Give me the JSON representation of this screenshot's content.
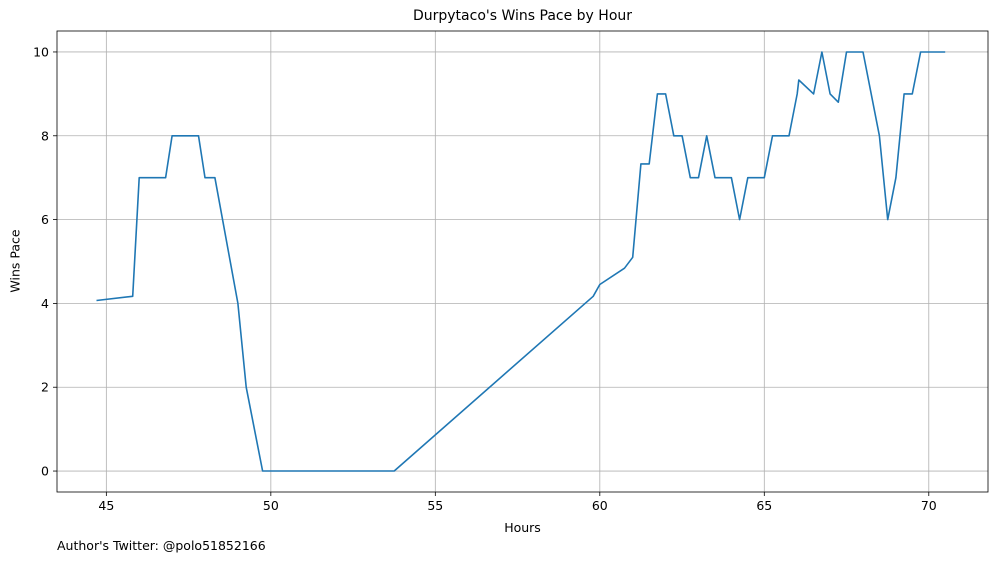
{
  "chart_data": {
    "type": "line",
    "title": "Durpytaco's Wins Pace by Hour",
    "xlabel": "Hours",
    "ylabel": "Wins Pace",
    "xlim": [
      43.5,
      71.8
    ],
    "ylim": [
      -0.5,
      10.5
    ],
    "xticks": [
      45,
      50,
      55,
      60,
      65,
      70
    ],
    "yticks": [
      0,
      2,
      4,
      6,
      8,
      10
    ],
    "grid": true,
    "line_color": "#1f77b4",
    "series": [
      {
        "x": [
          44.7,
          45.8,
          46.0,
          46.8,
          47.0,
          47.8,
          48.0,
          48.3,
          49.0,
          49.25,
          49.75,
          53.75,
          59.8,
          60.0,
          60.75,
          61.0,
          61.25,
          61.5,
          61.75,
          62.0,
          62.25,
          62.5,
          62.75,
          63.0,
          63.25,
          63.5,
          64.0,
          64.25,
          64.5,
          65.0,
          65.25,
          65.75,
          66.0,
          66.05,
          66.5,
          66.75,
          67.0,
          67.25,
          67.5,
          68.0,
          68.5,
          68.75,
          69.0,
          69.25,
          69.5,
          69.75,
          70.0,
          70.5
        ],
        "y": [
          4.07,
          4.17,
          7.0,
          7.0,
          8.0,
          8.0,
          7.0,
          7.0,
          4.0,
          2.0,
          0.0,
          0.0,
          4.17,
          4.45,
          4.84,
          5.1,
          7.33,
          7.33,
          9.0,
          9.0,
          8.0,
          8.0,
          7.0,
          7.0,
          8.0,
          7.0,
          7.0,
          6.0,
          7.0,
          7.0,
          8.0,
          8.0,
          9.0,
          9.33,
          9.0,
          10.0,
          9.0,
          8.8,
          10.0,
          10.0,
          8.0,
          6.0,
          7.0,
          9.0,
          9.0,
          10.0,
          10.0,
          10.0
        ]
      }
    ]
  },
  "footnote": "Author's Twitter: @polo51852166"
}
